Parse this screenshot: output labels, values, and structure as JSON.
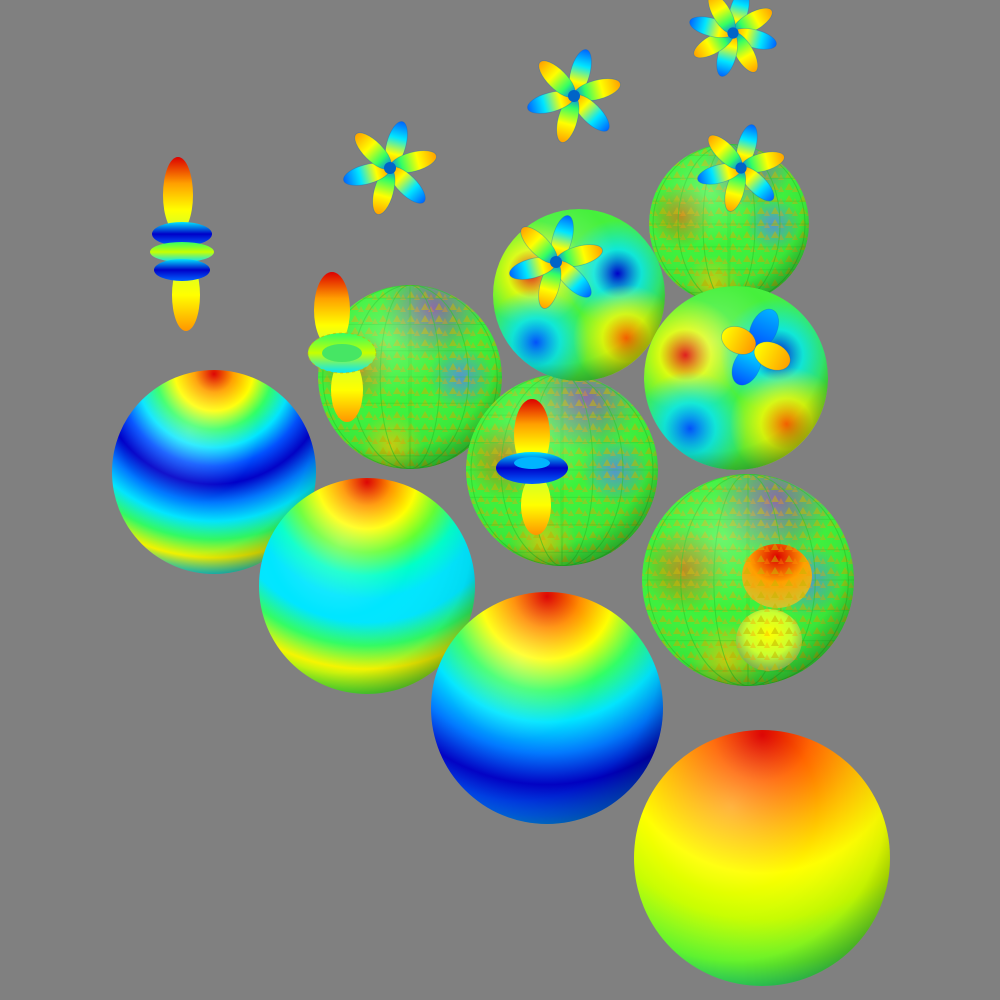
{
  "scene": {
    "background": "#808080",
    "palette": [
      "#0000c8",
      "#0064ff",
      "#00e6ff",
      "#32ff64",
      "#ffff00",
      "#ff9600",
      "#dc0000"
    ],
    "texture_color": "#c8b400",
    "groups": [
      {
        "name": "plain-spheres",
        "pattern": "horizontal-bands",
        "items": [
          {
            "name": "sphere-plain-1",
            "colors": [
              "#dc0000",
              "#ffa000",
              "#ffff00",
              "#32ff64",
              "#00e6ff",
              "#0050ff",
              "#0000c8",
              "#0078ff",
              "#00e6ff",
              "#32ff64",
              "#ffff00",
              "#00e6ff",
              "#0000c8"
            ]
          },
          {
            "name": "sphere-plain-2",
            "colors": [
              "#dc0000",
              "#ff9600",
              "#ffff00",
              "#64ff32",
              "#00ffc8",
              "#00e6ff",
              "#00e6ff",
              "#32ff64",
              "#ffff00",
              "#64ff32",
              "#00e6ff"
            ]
          },
          {
            "name": "sphere-plain-3",
            "colors": [
              "#dc0000",
              "#ff8c00",
              "#ffff00",
              "#32ff64",
              "#00e6ff",
              "#0078ff",
              "#0000c8",
              "#0064ff",
              "#00e6ff"
            ]
          },
          {
            "name": "sphere-plain-4",
            "colors": [
              "#dc0000",
              "#ff6400",
              "#ffb400",
              "#ffff00",
              "#c8ff00",
              "#64ff32",
              "#00ffb4"
            ]
          }
        ]
      },
      {
        "name": "textured-spheres",
        "pattern": "mottled-with-hatching",
        "items": [
          {
            "name": "sphere-textured-1"
          },
          {
            "name": "sphere-textured-2"
          },
          {
            "name": "sphere-textured-3"
          },
          {
            "name": "sphere-textured-4"
          }
        ]
      },
      {
        "name": "smooth-lobed-spheres",
        "pattern": "four-lobed",
        "items": [
          {
            "name": "sphere-lobed-1"
          },
          {
            "name": "sphere-lobed-2"
          }
        ]
      },
      {
        "name": "orbital-shapes",
        "items": [
          {
            "name": "orbital-dz2-floating",
            "kind": "dumbbell-with-rings"
          },
          {
            "name": "orbital-dz2-on-sphere",
            "kind": "dumbbell-with-ring"
          },
          {
            "name": "orbital-pz-on-sphere",
            "kind": "dumbbell-with-ring"
          },
          {
            "name": "orbital-p-on-sphere",
            "kind": "two-lobes"
          },
          {
            "name": "orbital-d-clover-on-sphere",
            "kind": "four-lobes"
          },
          {
            "name": "orbital-f-flower-1",
            "kind": "six-lobes"
          },
          {
            "name": "orbital-f-flower-2",
            "kind": "six-lobes"
          },
          {
            "name": "orbital-f-flower-3",
            "kind": "six-lobes"
          },
          {
            "name": "orbital-f-flower-4",
            "kind": "six-lobes"
          },
          {
            "name": "orbital-f-flower-5",
            "kind": "eight-lobes"
          }
        ]
      }
    ]
  }
}
